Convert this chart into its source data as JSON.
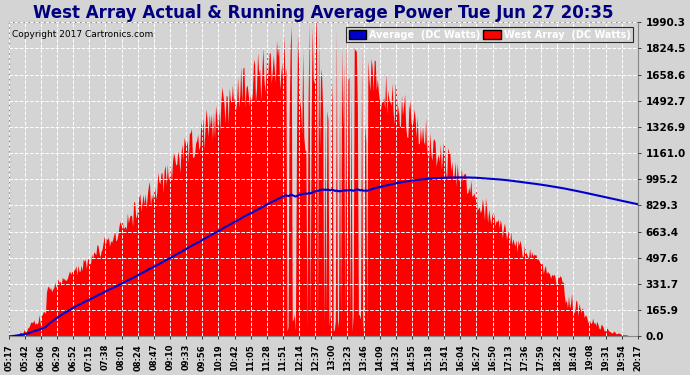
{
  "title": "West Array Actual & Running Average Power Tue Jun 27 20:35",
  "copyright": "Copyright 2017 Cartronics.com",
  "legend_avg": "Average  (DC Watts)",
  "legend_west": "West Array  (DC Watts)",
  "yticks": [
    0.0,
    165.9,
    331.7,
    497.6,
    663.4,
    829.3,
    995.2,
    1161.0,
    1326.9,
    1492.7,
    1658.6,
    1824.5,
    1990.3
  ],
  "ymax": 1990.3,
  "bg_color": "#d4d4d4",
  "grid_color": "#ffffff",
  "title_color": "#000080",
  "title_fontsize": 12,
  "avg_color": "#0000cc",
  "west_color": "#ff0000",
  "xtick_labels": [
    "05:17",
    "05:42",
    "06:06",
    "06:29",
    "06:52",
    "07:15",
    "07:38",
    "08:01",
    "08:24",
    "08:47",
    "09:10",
    "09:33",
    "09:56",
    "10:19",
    "10:42",
    "11:05",
    "11:28",
    "11:51",
    "12:14",
    "12:37",
    "13:00",
    "13:23",
    "13:46",
    "14:09",
    "14:32",
    "14:55",
    "15:18",
    "15:41",
    "16:04",
    "16:27",
    "16:50",
    "17:13",
    "17:36",
    "17:59",
    "18:22",
    "18:45",
    "19:08",
    "19:31",
    "19:54",
    "20:17"
  ]
}
